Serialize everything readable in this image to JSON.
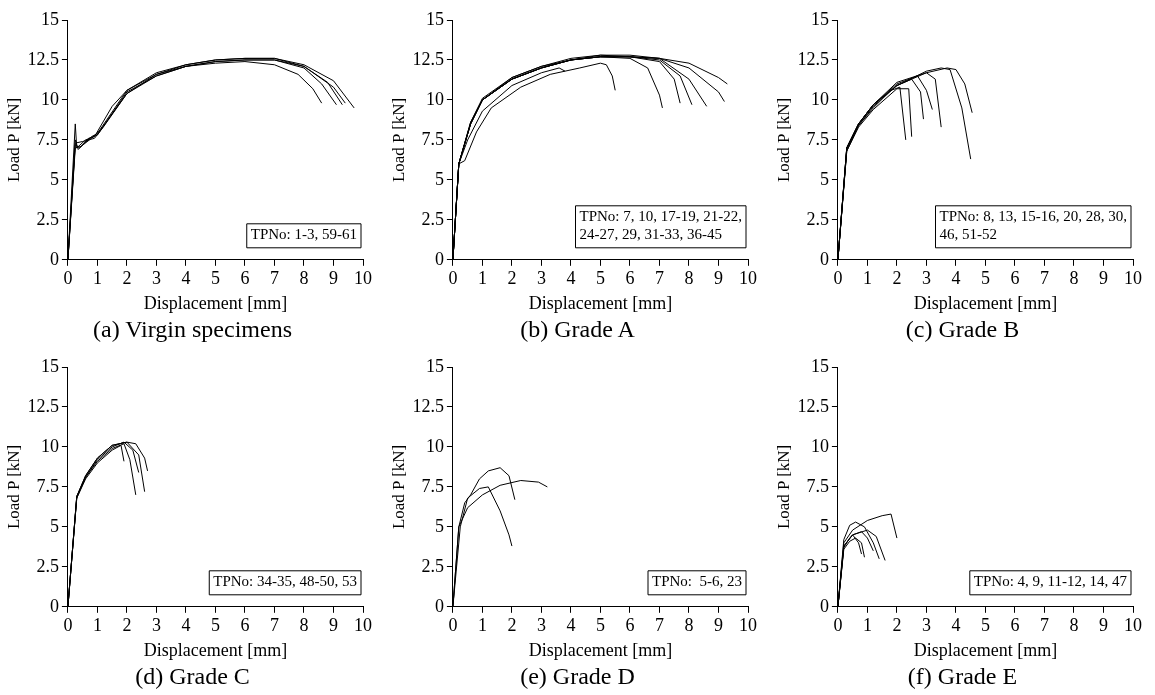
{
  "chart_data": [
    {
      "type": "line",
      "title": "(a) Virgin specimens",
      "xlabel": "Displacement [mm]",
      "ylabel": "Load P [kN]",
      "xlim": [
        0,
        10
      ],
      "xticks": [
        0,
        1,
        2,
        3,
        4,
        5,
        6,
        7,
        8,
        9,
        10
      ],
      "ylim": [
        0,
        15
      ],
      "yticks": [
        0,
        2.5,
        5,
        7.5,
        10,
        12.5,
        15
      ],
      "grid": false,
      "legend": false,
      "marker": "none",
      "line_style": "solid",
      "annotations": [
        "TPNo: 1-3, 59-61"
      ],
      "series": [
        {
          "color": "#000000",
          "x": [
            0,
            0.25,
            0.3,
            0.6,
            0.9,
            1.5,
            2,
            3,
            4,
            5,
            6,
            7,
            7.8,
            8.3,
            8.6
          ],
          "values": [
            0,
            8.5,
            7,
            7.5,
            7.7,
            9.6,
            10.6,
            11.6,
            12.1,
            12.3,
            12.4,
            12.2,
            11.6,
            10.7,
            9.8
          ]
        },
        {
          "color": "#000000",
          "x": [
            0,
            0.25,
            0.35,
            0.7,
            1,
            2,
            3,
            4,
            5,
            6,
            7,
            8,
            8.6,
            9.1
          ],
          "values": [
            0,
            7.5,
            6.9,
            7.6,
            7.8,
            10.5,
            11.5,
            12.1,
            12.4,
            12.5,
            12.5,
            12,
            11,
            9.7
          ]
        },
        {
          "color": "#000000",
          "x": [
            0,
            0.25,
            0.4,
            0.8,
            1,
            2,
            3,
            4,
            5,
            6,
            7,
            8,
            8.8,
            9.3
          ],
          "values": [
            0,
            7.2,
            7,
            7.7,
            7.9,
            10.6,
            11.7,
            12.2,
            12.5,
            12.6,
            12.6,
            12.1,
            11.1,
            9.7
          ]
        },
        {
          "color": "#000000",
          "x": [
            0,
            0.25,
            0.45,
            0.8,
            1.1,
            2,
            3,
            4,
            5,
            6,
            7,
            8,
            9,
            9.4
          ],
          "values": [
            0,
            7,
            7.1,
            7.6,
            8.1,
            10.4,
            11.5,
            12.1,
            12.4,
            12.5,
            12.5,
            12.1,
            10.8,
            9.8
          ]
        },
        {
          "color": "#000000",
          "x": [
            0,
            0.25,
            0.5,
            0.9,
            1.2,
            2,
            3,
            4,
            5,
            6,
            7,
            8,
            9,
            9.7
          ],
          "values": [
            0,
            7.3,
            7.4,
            7.6,
            8.3,
            10.4,
            11.6,
            12.2,
            12.5,
            12.6,
            12.6,
            12.2,
            11.2,
            9.5
          ]
        }
      ]
    },
    {
      "type": "line",
      "title": "(b) Grade A",
      "xlabel": "Displacement [mm]",
      "ylabel": "Load P [kN]",
      "xlim": [
        0,
        10
      ],
      "xticks": [
        0,
        1,
        2,
        3,
        4,
        5,
        6,
        7,
        8,
        9,
        10
      ],
      "ylim": [
        0,
        15
      ],
      "yticks": [
        0,
        2.5,
        5,
        7.5,
        10,
        12.5,
        15
      ],
      "grid": false,
      "legend": false,
      "marker": "none",
      "line_style": "solid",
      "annotations": [
        "TPNo: 7, 10, 17-19, 21-22, 24-27, 29, 31-33, 36-45"
      ],
      "series": [
        {
          "color": "#000000",
          "x": [
            0,
            0.2,
            0.4,
            0.8,
            1.3,
            2.3,
            3.3,
            4.3,
            5,
            5.2,
            5.4,
            5.5
          ],
          "values": [
            0,
            6,
            6.2,
            8,
            9.5,
            10.8,
            11.6,
            12,
            12.3,
            12.2,
            11.5,
            10.6
          ]
        },
        {
          "color": "#000000",
          "x": [
            0,
            0.2,
            0.5,
            1,
            2,
            3,
            3.6,
            3.8
          ],
          "values": [
            0,
            6,
            7.5,
            9.3,
            10.9,
            11.7,
            12,
            11.8
          ]
        },
        {
          "color": "#000000",
          "x": [
            0,
            0.2,
            0.6,
            1,
            2,
            3,
            4,
            5,
            6,
            6.6,
            7,
            7.1
          ],
          "values": [
            0,
            6,
            8.5,
            10,
            11.3,
            12,
            12.5,
            12.7,
            12.6,
            12,
            10.3,
            9.5
          ]
        },
        {
          "color": "#000000",
          "x": [
            0,
            0.2,
            0.6,
            1,
            2,
            3,
            4,
            5,
            6,
            7,
            7.5,
            7.7
          ],
          "values": [
            0,
            6,
            8.5,
            10,
            11.3,
            12,
            12.5,
            12.7,
            12.7,
            12.4,
            11.3,
            9.8
          ]
        },
        {
          "color": "#000000",
          "x": [
            0,
            0.2,
            0.6,
            1,
            2,
            3,
            4,
            5,
            6,
            7,
            7.7,
            8.1
          ],
          "values": [
            0,
            6,
            8.6,
            10,
            11.4,
            12.1,
            12.5,
            12.8,
            12.7,
            12.5,
            11.5,
            9.7
          ]
        },
        {
          "color": "#000000",
          "x": [
            0,
            0.2,
            0.6,
            1,
            2,
            3,
            4,
            5,
            6,
            7,
            8,
            8.6
          ],
          "values": [
            0,
            6,
            8.6,
            10.1,
            11.4,
            12.1,
            12.6,
            12.8,
            12.8,
            12.6,
            11.3,
            9.6
          ]
        },
        {
          "color": "#000000",
          "x": [
            0,
            0.2,
            0.6,
            1,
            2,
            3,
            4,
            5,
            6,
            7,
            8,
            9,
            9.2
          ],
          "values": [
            0,
            6,
            8.5,
            10,
            11.3,
            12,
            12.5,
            12.7,
            12.7,
            12.6,
            12,
            10.5,
            9.9
          ]
        },
        {
          "color": "#000000",
          "x": [
            0,
            0.2,
            0.6,
            1,
            2,
            3,
            4,
            5,
            6,
            7,
            8,
            9,
            9.3
          ],
          "values": [
            0,
            6,
            8.5,
            10,
            11.3,
            12,
            12.5,
            12.7,
            12.7,
            12.6,
            12.3,
            11.4,
            11
          ]
        }
      ]
    },
    {
      "type": "line",
      "title": "(c) Grade B",
      "xlabel": "Displacement [mm]",
      "ylabel": "Load P [kN]",
      "xlim": [
        0,
        10
      ],
      "xticks": [
        0,
        1,
        2,
        3,
        4,
        5,
        6,
        7,
        8,
        9,
        10
      ],
      "ylim": [
        0,
        15
      ],
      "yticks": [
        0,
        2.5,
        5,
        7.5,
        10,
        12.5,
        15
      ],
      "grid": false,
      "legend": false,
      "marker": "none",
      "line_style": "solid",
      "annotations": [
        "TPNo: 8, 13, 15-16, 20, 28, 30, 46, 51-52"
      ],
      "series": [
        {
          "color": "#000000",
          "x": [
            0,
            0.3,
            0.7,
            1.2,
            2,
            3,
            3.7,
            4,
            4.3,
            4.55
          ],
          "values": [
            0,
            7,
            8.5,
            9.7,
            10.9,
            11.7,
            12,
            11.9,
            11,
            9.2
          ]
        },
        {
          "color": "#000000",
          "x": [
            0,
            0.3,
            0.7,
            1.2,
            2,
            3,
            3.5,
            3.8,
            4.2,
            4.5
          ],
          "values": [
            0,
            7,
            8.5,
            9.7,
            10.9,
            11.8,
            12,
            11.9,
            9.5,
            6.3
          ]
        },
        {
          "color": "#000000",
          "x": [
            0,
            0.3,
            0.7,
            1.2,
            2,
            2.4,
            2.5
          ],
          "values": [
            0,
            6.8,
            8.3,
            9.4,
            10.7,
            10.7,
            7.7
          ]
        },
        {
          "color": "#000000",
          "x": [
            0,
            0.3,
            0.7,
            1.2,
            1.8,
            2.1,
            2.3
          ],
          "values": [
            0,
            6.8,
            8.4,
            9.5,
            10.6,
            10.8,
            7.5
          ]
        },
        {
          "color": "#000000",
          "x": [
            0,
            0.3,
            0.7,
            1.2,
            2,
            2.5,
            2.8,
            2.9
          ],
          "values": [
            0,
            6.9,
            8.4,
            9.6,
            10.9,
            11.3,
            10.5,
            8.8
          ]
        },
        {
          "color": "#000000",
          "x": [
            0,
            0.3,
            0.7,
            1.2,
            2,
            2.7,
            3,
            3.2
          ],
          "values": [
            0,
            7,
            8.5,
            9.7,
            11,
            11.5,
            10.6,
            9.4
          ]
        },
        {
          "color": "#000000",
          "x": [
            0,
            0.3,
            0.7,
            1.2,
            2,
            3,
            3.3,
            3.5
          ],
          "values": [
            0,
            7,
            8.5,
            9.7,
            11.1,
            11.7,
            11.3,
            8.3
          ]
        }
      ]
    },
    {
      "type": "line",
      "title": "(d) Grade C",
      "xlabel": "Displacement [mm]",
      "ylabel": "Load P [kN]",
      "xlim": [
        0,
        10
      ],
      "xticks": [
        0,
        1,
        2,
        3,
        4,
        5,
        6,
        7,
        8,
        9,
        10
      ],
      "ylim": [
        0,
        15
      ],
      "yticks": [
        0,
        2.5,
        5,
        7.5,
        10,
        12.5,
        15
      ],
      "grid": false,
      "legend": false,
      "marker": "none",
      "line_style": "solid",
      "annotations": [
        "TPNo: 34-35, 48-50, 53"
      ],
      "series": [
        {
          "color": "#000000",
          "x": [
            0,
            0.3,
            0.6,
            1,
            1.5,
            1.8,
            1.9
          ],
          "values": [
            0,
            6.8,
            8,
            9,
            9.8,
            10.1,
            9.1
          ]
        },
        {
          "color": "#000000",
          "x": [
            0,
            0.3,
            0.6,
            1,
            1.5,
            1.9,
            2.1,
            2.3
          ],
          "values": [
            0,
            6.8,
            8.1,
            9.1,
            9.9,
            10.2,
            9.2,
            7
          ]
        },
        {
          "color": "#000000",
          "x": [
            0,
            0.3,
            0.6,
            1,
            1.5,
            1.9,
            2.2,
            2.4
          ],
          "values": [
            0,
            6.9,
            8.1,
            9.2,
            10,
            10.3,
            9.8,
            8.4
          ]
        },
        {
          "color": "#000000",
          "x": [
            0,
            0.3,
            0.6,
            1,
            1.5,
            2,
            2.4,
            2.6
          ],
          "values": [
            0,
            6.9,
            8.2,
            9.3,
            10.1,
            10.3,
            9.5,
            7.2
          ]
        },
        {
          "color": "#000000",
          "x": [
            0,
            0.3,
            0.6,
            1,
            1.5,
            2,
            2.3,
            2.6,
            2.7
          ],
          "values": [
            0,
            6.9,
            8.2,
            9.3,
            10.1,
            10.3,
            10.2,
            9.3,
            8.5
          ]
        }
      ]
    },
    {
      "type": "line",
      "title": "(e) Grade D",
      "xlabel": "Displacement [mm]",
      "ylabel": "Load P [kN]",
      "xlim": [
        0,
        10
      ],
      "xticks": [
        0,
        1,
        2,
        3,
        4,
        5,
        6,
        7,
        8,
        9,
        10
      ],
      "ylim": [
        0,
        15
      ],
      "yticks": [
        0,
        2.5,
        5,
        7.5,
        10,
        12.5,
        15
      ],
      "grid": false,
      "legend": false,
      "marker": "none",
      "line_style": "solid",
      "annotations": [
        "TPNo:  5-6, 23"
      ],
      "series": [
        {
          "color": "#000000",
          "x": [
            0,
            0.2,
            0.4,
            0.6,
            0.9,
            1.2,
            1.6,
            1.9,
            2.1
          ],
          "values": [
            0,
            5,
            6.5,
            7,
            8,
            8.5,
            8.7,
            8.2,
            6.7
          ]
        },
        {
          "color": "#000000",
          "x": [
            0,
            0.25,
            0.5,
            0.9,
            1.2,
            1.6,
            1.9,
            2
          ],
          "values": [
            0,
            5,
            6.8,
            7.4,
            7.5,
            6,
            4.5,
            3.8
          ]
        },
        {
          "color": "#000000",
          "x": [
            0,
            0.2,
            0.5,
            1,
            1.6,
            2.3,
            2.9,
            3.2
          ],
          "values": [
            0,
            5,
            6.2,
            7,
            7.6,
            7.9,
            7.8,
            7.5
          ]
        }
      ]
    },
    {
      "type": "line",
      "title": "(f) Grade E",
      "xlabel": "Displacement [mm]",
      "ylabel": "Load P [kN]",
      "xlim": [
        0,
        10
      ],
      "xticks": [
        0,
        1,
        2,
        3,
        4,
        5,
        6,
        7,
        8,
        9,
        10
      ],
      "ylim": [
        0,
        15
      ],
      "yticks": [
        0,
        2.5,
        5,
        7.5,
        10,
        12.5,
        15
      ],
      "grid": false,
      "legend": false,
      "marker": "none",
      "line_style": "solid",
      "annotations": [
        "TPNo: 4, 9, 11-12, 14, 47"
      ],
      "series": [
        {
          "color": "#000000",
          "x": [
            0,
            0.2,
            0.5,
            1,
            1.5,
            1.8,
            2
          ],
          "values": [
            0,
            4,
            4.8,
            5.4,
            5.7,
            5.8,
            4.3
          ]
        },
        {
          "color": "#000000",
          "x": [
            0,
            0.2,
            0.4,
            0.6,
            0.9,
            1.2,
            1.4
          ],
          "values": [
            0,
            4.2,
            5.1,
            5.3,
            5,
            4,
            3
          ]
        },
        {
          "color": "#000000",
          "x": [
            0,
            0.2,
            0.5,
            1,
            1.3,
            1.6
          ],
          "values": [
            0,
            3.8,
            4.5,
            4.8,
            4.4,
            2.9
          ]
        },
        {
          "color": "#000000",
          "x": [
            0,
            0.2,
            0.4,
            0.6,
            0.8,
            0.9
          ],
          "values": [
            0,
            3.6,
            4.1,
            4.3,
            4,
            3.1
          ]
        },
        {
          "color": "#000000",
          "x": [
            0,
            0.2,
            0.5,
            0.8,
            1,
            1.2
          ],
          "values": [
            0,
            3.8,
            4.5,
            4.7,
            4.3,
            3.5
          ]
        },
        {
          "color": "#000000",
          "x": [
            0,
            0.2,
            0.4,
            0.5,
            0.7,
            0.8
          ],
          "values": [
            0,
            3.7,
            4.3,
            4.5,
            4,
            3.3
          ]
        }
      ]
    }
  ]
}
